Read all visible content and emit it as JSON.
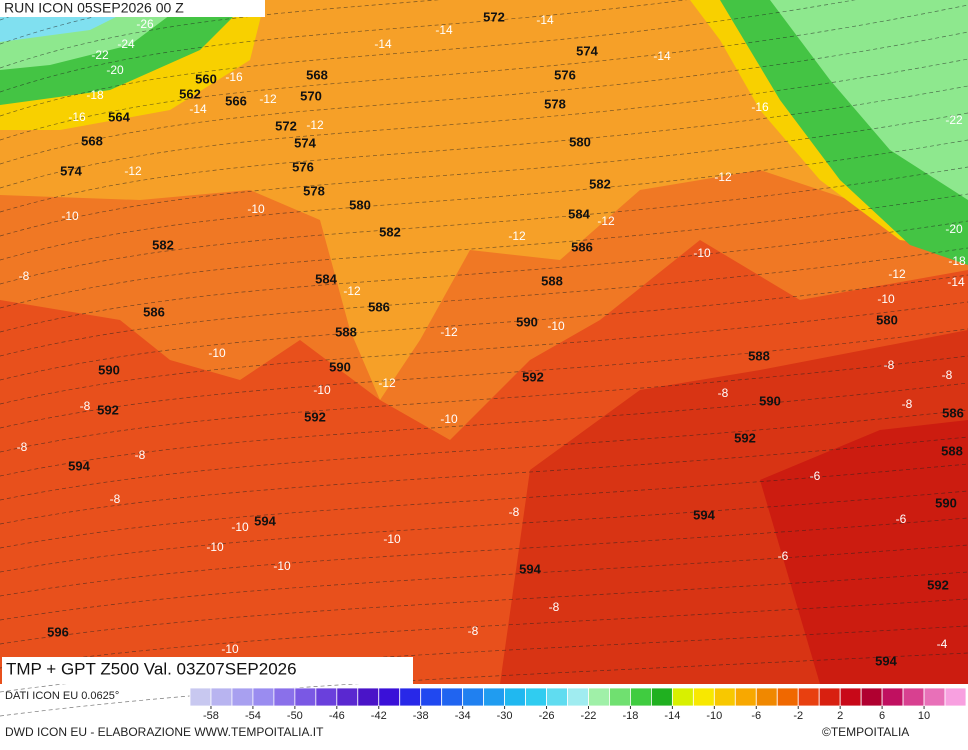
{
  "header": {
    "run": "RUN ICON 05SEP2026 00 Z"
  },
  "map": {
    "title": "TMP + GPT Z500 Val. 03Z07SEP2026",
    "geopotential_labels": [
      572,
      574,
      576,
      578,
      580,
      582,
      584,
      586,
      588,
      590,
      592,
      594,
      594,
      594,
      596,
      560,
      562,
      564,
      566,
      568,
      568,
      570,
      572,
      574,
      574,
      576,
      578,
      580,
      582,
      582,
      584,
      586,
      586,
      588,
      590,
      590,
      592,
      592,
      594,
      594,
      580,
      588,
      590,
      592,
      586,
      588,
      590,
      592
    ],
    "temperature_labels": [
      -26,
      -24,
      -22,
      -20,
      -18,
      -16,
      -16,
      -14,
      -12,
      -12,
      -14,
      -14,
      -14,
      -14,
      -16,
      -12,
      -10,
      -10,
      -12,
      -12,
      -12,
      -10,
      -8,
      -12,
      -10,
      -12,
      -10,
      -12,
      -10,
      -8,
      -8,
      -8,
      -8,
      -10,
      -8,
      -8,
      -8,
      -8,
      -6,
      -6,
      -6,
      -10,
      -10,
      -10,
      -10,
      -8,
      -8,
      -8,
      -10,
      -4,
      -22,
      -20,
      -18,
      -14,
      -12,
      -10
    ]
  },
  "colorbar": {
    "source": "DATI ICON EU 0.0625°",
    "lim": [
      -60,
      14
    ],
    "ticks": [
      -58,
      -54,
      -50,
      -46,
      -42,
      -38,
      -34,
      -30,
      -26,
      -22,
      -18,
      -14,
      -10,
      -6,
      -2,
      2,
      6,
      10
    ],
    "colors": [
      "#c8c8f0",
      "#b8b4f0",
      "#a8a0f0",
      "#9a8cf0",
      "#8a70ea",
      "#7a58e4",
      "#6a40dc",
      "#5a28d0",
      "#4a14c8",
      "#3a10d8",
      "#2828e8",
      "#2048f0",
      "#2064f0",
      "#2080f0",
      "#209cf0",
      "#20b8f0",
      "#30ccf0",
      "#60dcf0",
      "#a0ecf0",
      "#a0f0a8",
      "#70e070",
      "#40cc40",
      "#20b020",
      "#d8f000",
      "#f8e800",
      "#f8c800",
      "#f8a800",
      "#f08800",
      "#f06800",
      "#e84010",
      "#d82010",
      "#c80818",
      "#b00030",
      "#c01060",
      "#d84090",
      "#e870b8",
      "#f8a0e0"
    ]
  },
  "footer": {
    "credit": "DWD ICON EU - ELABORAZIONE WWW.TEMPOITALIA.IT",
    "brand": "©TEMPOITALIA"
  }
}
